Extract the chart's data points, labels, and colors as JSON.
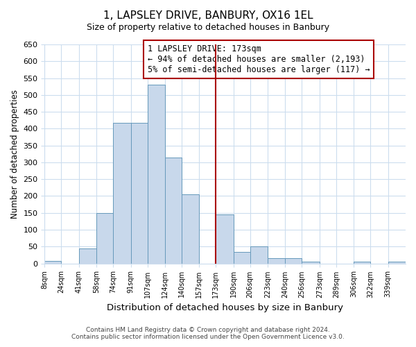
{
  "title": "1, LAPSLEY DRIVE, BANBURY, OX16 1EL",
  "subtitle": "Size of property relative to detached houses in Banbury",
  "xlabel": "Distribution of detached houses by size in Banbury",
  "ylabel": "Number of detached properties",
  "bin_labels": [
    "8sqm",
    "24sqm",
    "41sqm",
    "58sqm",
    "74sqm",
    "91sqm",
    "107sqm",
    "124sqm",
    "140sqm",
    "157sqm",
    "173sqm",
    "190sqm",
    "206sqm",
    "223sqm",
    "240sqm",
    "256sqm",
    "273sqm",
    "289sqm",
    "306sqm",
    "322sqm",
    "339sqm"
  ],
  "bin_edges": [
    8,
    24,
    41,
    58,
    74,
    91,
    107,
    124,
    140,
    157,
    173,
    190,
    206,
    223,
    240,
    256,
    273,
    289,
    306,
    322,
    339
  ],
  "bar_heights": [
    8,
    0,
    45,
    150,
    418,
    418,
    530,
    315,
    205,
    0,
    145,
    35,
    50,
    15,
    15,
    5,
    0,
    0,
    5,
    0,
    5
  ],
  "bar_color": "#c8d8eb",
  "bar_edge_color": "#6699bb",
  "vline_x": 173,
  "vline_color": "#aa0000",
  "ylim": [
    0,
    650
  ],
  "yticks": [
    0,
    50,
    100,
    150,
    200,
    250,
    300,
    350,
    400,
    450,
    500,
    550,
    600,
    650
  ],
  "annotation_title": "1 LAPSLEY DRIVE: 173sqm",
  "annotation_line1": "← 94% of detached houses are smaller (2,193)",
  "annotation_line2": "5% of semi-detached houses are larger (117) →",
  "annotation_box_color": "#ffffff",
  "annotation_box_edge": "#aa0000",
  "footer1": "Contains HM Land Registry data © Crown copyright and database right 2024.",
  "footer2": "Contains public sector information licensed under the Open Government Licence v3.0.",
  "bg_color": "#ffffff",
  "grid_color": "#ccddee"
}
